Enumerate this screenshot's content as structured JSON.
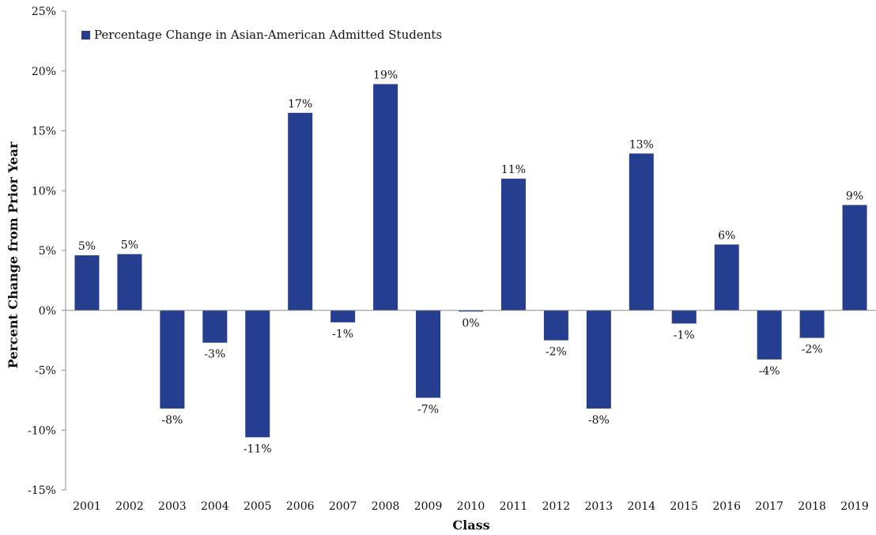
{
  "chart_data": {
    "type": "bar",
    "categories": [
      "2001",
      "2002",
      "2003",
      "2004",
      "2005",
      "2006",
      "2007",
      "2008",
      "2009",
      "2010",
      "2011",
      "2012",
      "2013",
      "2014",
      "2015",
      "2016",
      "2017",
      "2018",
      "2019"
    ],
    "series": [
      {
        "name": "Percentage Change in Asian-American Admitted Students",
        "values": [
          4.6,
          4.7,
          -8.2,
          -2.7,
          -10.6,
          16.5,
          -1.0,
          18.9,
          -7.3,
          -0.1,
          11.0,
          -2.5,
          -8.2,
          13.1,
          -1.1,
          5.5,
          -4.1,
          -2.3,
          8.8
        ],
        "data_labels": [
          "5%",
          "5%",
          "-8%",
          "-3%",
          "-11%",
          "17%",
          "-1%",
          "19%",
          "-7%",
          "0%",
          "11%",
          "-2%",
          "-8%",
          "13%",
          "-1%",
          "6%",
          "-4%",
          "-2%",
          "9%"
        ]
      }
    ],
    "xlabel": "Class",
    "ylabel": "Percent Change from Prior Year",
    "ylim": [
      -15,
      25
    ],
    "yticks": [
      -15,
      -10,
      -5,
      0,
      5,
      10,
      15,
      20,
      25
    ],
    "ytick_labels": [
      "-15%",
      "-10%",
      "-5%",
      "0%",
      "5%",
      "10%",
      "15%",
      "20%",
      "25%"
    ],
    "grid": false,
    "legend_position": "top-left",
    "colors": {
      "bar": "#253E8F",
      "axis": "#8c8c8c"
    }
  }
}
